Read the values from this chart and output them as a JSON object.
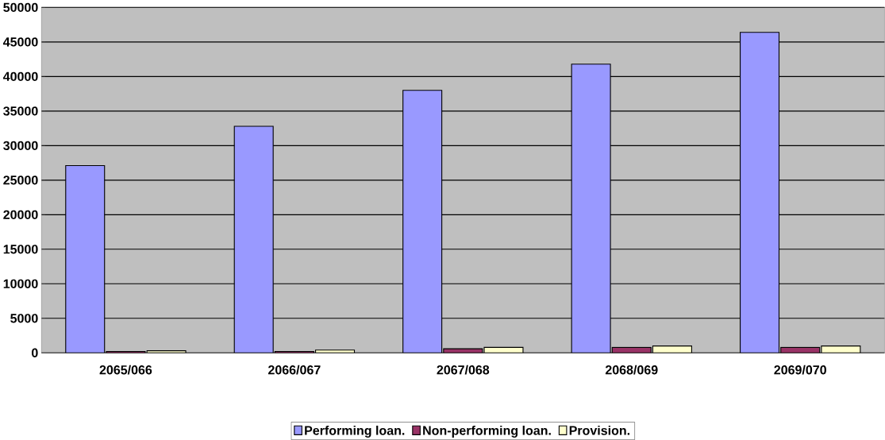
{
  "chart_data": {
    "type": "bar",
    "categories": [
      "2065/066",
      "2066/067",
      "2067/068",
      "2068/069",
      "2069/070"
    ],
    "series": [
      {
        "name": "Performing loan.",
        "color": "#9999ff",
        "values": [
          27100,
          32800,
          38000,
          41800,
          46400
        ]
      },
      {
        "name": "Non-performing loan.",
        "color": "#993366",
        "values": [
          200,
          200,
          600,
          800,
          800
        ]
      },
      {
        "name": "Provision.",
        "color": "#ffffcc",
        "values": [
          300,
          400,
          800,
          1000,
          1000
        ]
      }
    ],
    "ylim": [
      0,
      50000
    ],
    "yticks": [
      0,
      5000,
      10000,
      15000,
      20000,
      25000,
      30000,
      35000,
      40000,
      45000,
      50000
    ],
    "grid": "y",
    "legend": "bottom"
  }
}
